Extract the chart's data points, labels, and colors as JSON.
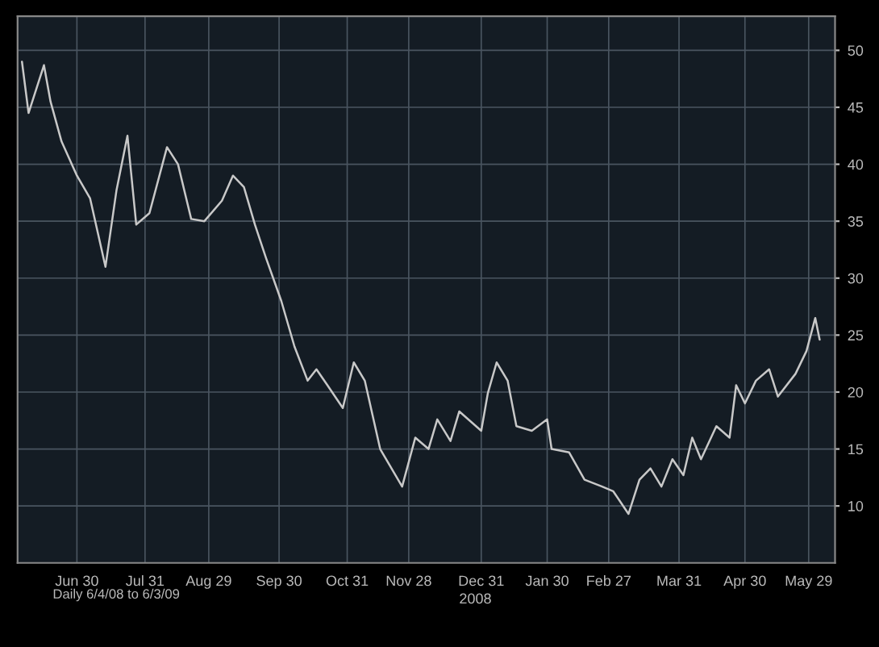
{
  "chart_data": {
    "type": "line",
    "xlabel": "2008",
    "x": [
      "2008-06-05",
      "2008-06-08",
      "2008-06-15",
      "2008-06-18",
      "2008-06-23",
      "2008-06-30",
      "2008-07-06",
      "2008-07-13",
      "2008-07-18",
      "2008-07-23",
      "2008-07-27",
      "2008-08-02",
      "2008-08-10",
      "2008-08-15",
      "2008-08-21",
      "2008-08-27",
      "2008-09-04",
      "2008-09-09",
      "2008-09-14",
      "2008-09-19",
      "2008-09-24",
      "2008-10-01",
      "2008-10-07",
      "2008-10-13",
      "2008-10-17",
      "2008-10-22",
      "2008-10-29",
      "2008-11-03",
      "2008-11-08",
      "2008-11-15",
      "2008-11-25",
      "2008-12-01",
      "2008-12-07",
      "2008-12-11",
      "2008-12-17",
      "2008-12-21",
      "2008-12-31",
      "2009-01-03",
      "2009-01-07",
      "2009-01-12",
      "2009-01-16",
      "2009-01-23",
      "2009-01-30",
      "2009-02-01",
      "2009-02-09",
      "2009-02-16",
      "2009-02-24",
      "2009-03-01",
      "2009-03-08",
      "2009-03-13",
      "2009-03-18",
      "2009-03-23",
      "2009-03-28",
      "2009-04-02",
      "2009-04-06",
      "2009-04-10",
      "2009-04-17",
      "2009-04-23",
      "2009-04-26",
      "2009-04-30",
      "2009-05-05",
      "2009-05-11",
      "2009-05-15",
      "2009-05-23",
      "2009-05-28",
      "2009-06-01",
      "2009-06-03"
    ],
    "series": [
      {
        "color": "#c8c8c8",
        "values": [
          49,
          44.5,
          48.7,
          45.5,
          42,
          39,
          37,
          31,
          37.7,
          42.5,
          34.7,
          35.7,
          41.5,
          40,
          35.2,
          35,
          36.8,
          39,
          38,
          34.7,
          31.8,
          28,
          24,
          21,
          22,
          20.6,
          18.6,
          22.6,
          21,
          15,
          11.7,
          16,
          15,
          17.6,
          15.7,
          18.3,
          16.6,
          19.9,
          22.6,
          21,
          17,
          16.6,
          17.6,
          15,
          14.7,
          12.3,
          11.7,
          11.3,
          9.3,
          12.3,
          13.3,
          11.7,
          14.1,
          12.7,
          16,
          14.1,
          17,
          16,
          20.6,
          19,
          21,
          22,
          19.6,
          21.6,
          23.6,
          26.5,
          24.6
        ]
      }
    ],
    "xlim": [
      "2008-06-03",
      "2009-06-10"
    ],
    "xticks": [
      {
        "value": "2008-06-30",
        "label": "Jun 30"
      },
      {
        "value": "2008-07-31",
        "label": "Jul 31"
      },
      {
        "value": "2008-08-29",
        "label": "Aug 29"
      },
      {
        "value": "2008-09-30",
        "label": "Sep 30"
      },
      {
        "value": "2008-10-31",
        "label": "Oct 31"
      },
      {
        "value": "2008-11-28",
        "label": "Nov 28"
      },
      {
        "value": "2008-12-31",
        "label": "Dec 31"
      },
      {
        "value": "2009-01-30",
        "label": "Jan 30"
      },
      {
        "value": "2009-02-27",
        "label": "Feb 27"
      },
      {
        "value": "2009-03-31",
        "label": "Mar 31"
      },
      {
        "value": "2009-04-30",
        "label": "Apr 30"
      },
      {
        "value": "2009-05-29",
        "label": "May 29"
      }
    ],
    "ylim": [
      5,
      53
    ],
    "yticks": [
      10,
      15,
      20,
      25,
      30,
      35,
      40,
      45,
      50
    ],
    "grid": true,
    "legend": false,
    "annotations": [
      "Daily 6/4/08 to 6/3/09"
    ]
  }
}
